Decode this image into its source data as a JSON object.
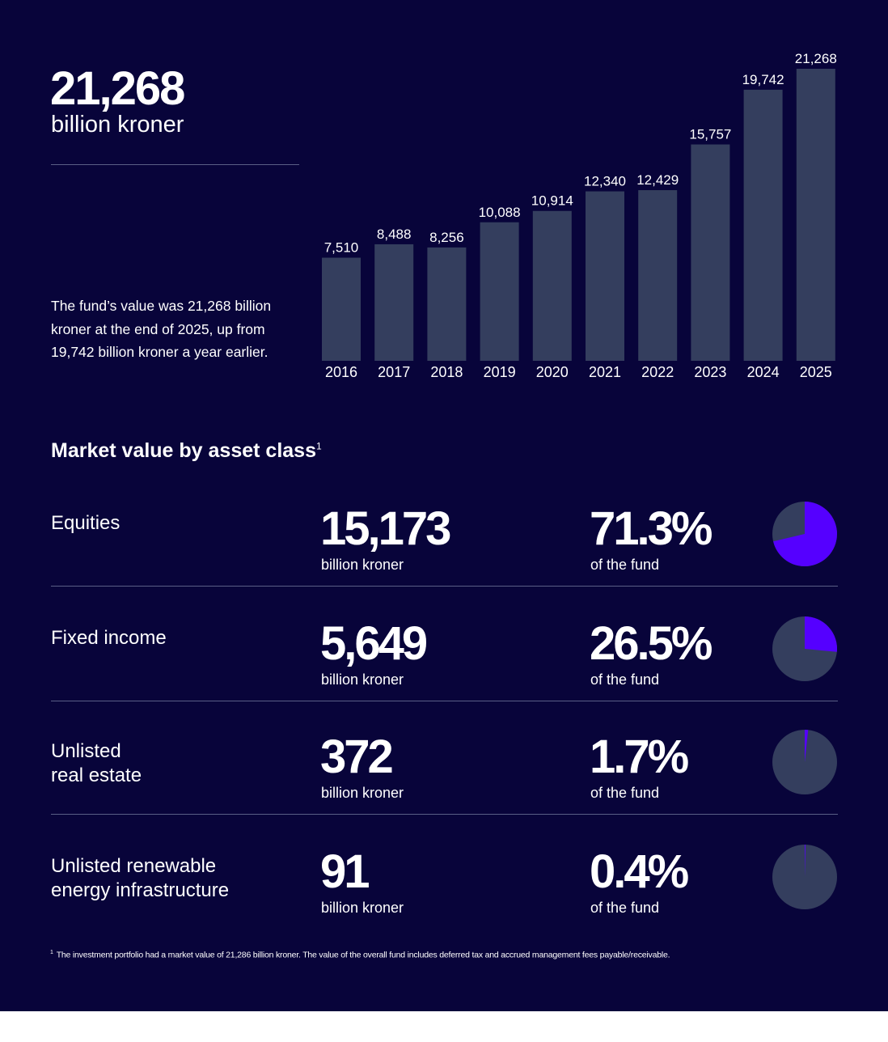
{
  "headline": {
    "value": "21,268",
    "unit": "billion kroner"
  },
  "description": "The fund’s value was 21,268 billion kroner at the end of 2025, up from 19,742 billion kroner a year earlier.",
  "colors": {
    "background": "#08043a",
    "bar": "#343e5e",
    "accent": "#5500ff",
    "pie_rest": "#343e5e",
    "divider": "#5a5f86"
  },
  "chart_data": [
    {
      "type": "bar",
      "categories": [
        "2016",
        "2017",
        "2018",
        "2019",
        "2020",
        "2021",
        "2022",
        "2023",
        "2024",
        "2025"
      ],
      "values": [
        7510,
        8488,
        8256,
        10088,
        10914,
        12340,
        12429,
        15757,
        19742,
        21268
      ],
      "labels": [
        "7,510",
        "8,488",
        "8,256",
        "10,088",
        "10,914",
        "12,340",
        "12,429",
        "15,757",
        "19,742",
        "21,268"
      ],
      "ylim": [
        0,
        21268
      ],
      "grid": false
    },
    {
      "type": "pie",
      "title": "Equities",
      "values": [
        71.3,
        28.7
      ]
    },
    {
      "type": "pie",
      "title": "Fixed income",
      "values": [
        26.5,
        73.5
      ]
    },
    {
      "type": "pie",
      "title": "Unlisted real estate",
      "values": [
        1.7,
        98.3
      ]
    },
    {
      "type": "pie",
      "title": "Unlisted renewable energy infrastructure",
      "values": [
        0.4,
        99.6
      ]
    }
  ],
  "section": {
    "title": "Market value by asset class",
    "footnote_mark": "1"
  },
  "asset_classes": [
    {
      "name": "Equities",
      "value": "15,173",
      "unit": "billion kroner",
      "percent": "71.3%",
      "percent_unit": "of the fund",
      "share": 71.3
    },
    {
      "name": "Fixed income",
      "value": "5,649",
      "unit": "billion kroner",
      "percent": "26.5%",
      "percent_unit": "of the fund",
      "share": 26.5
    },
    {
      "name": "Unlisted\nreal estate",
      "value": "372",
      "unit": "billion kroner",
      "percent": "1.7%",
      "percent_unit": "of the fund",
      "share": 1.7
    },
    {
      "name": "Unlisted renewable\nenergy infrastructure",
      "value": "91",
      "unit": "billion kroner",
      "percent": "0.4%",
      "percent_unit": "of the fund",
      "share": 0.4
    }
  ],
  "footnote": {
    "mark": "1",
    "text": "The investment portfolio had a market value of 21,286 billion kroner. The value of the overall fund includes deferred tax and accrued management fees payable/receivable."
  }
}
